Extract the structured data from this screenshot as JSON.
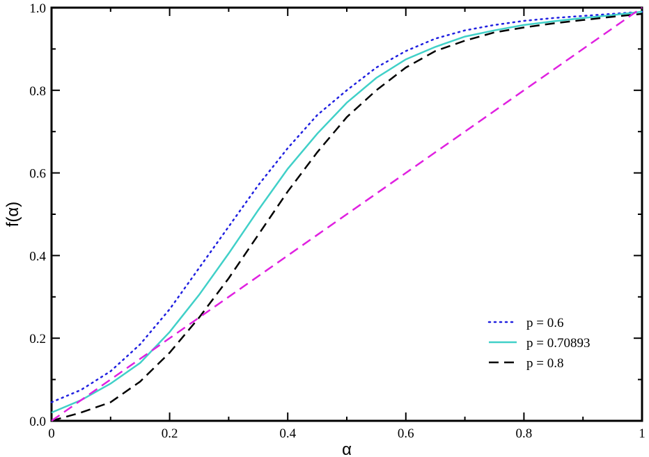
{
  "chart_data": {
    "type": "line",
    "title": "",
    "xlabel": "α",
    "ylabel": "f(α)",
    "xlim": [
      0,
      1
    ],
    "ylim": [
      0,
      1
    ],
    "x_ticks": [
      0,
      0.2,
      0.4,
      0.6,
      0.8,
      1
    ],
    "x_tick_labels": [
      "0",
      "0.2",
      "0.4",
      "0.6",
      "0.8",
      "1"
    ],
    "y_ticks": [
      0,
      0.2,
      0.4,
      0.6,
      0.8,
      1.0
    ],
    "y_tick_labels": [
      "0.0",
      "0.2",
      "0.4",
      "0.6",
      "0.8",
      "1.0"
    ],
    "grid": false,
    "legend_position": "bottom-right",
    "x": [
      0,
      0.05,
      0.1,
      0.15,
      0.2,
      0.25,
      0.3,
      0.35,
      0.4,
      0.45,
      0.5,
      0.55,
      0.6,
      0.65,
      0.7,
      0.75,
      0.8,
      0.85,
      0.9,
      0.95,
      1.0
    ],
    "series": [
      {
        "name": "p = 0.6",
        "color": "#2020e0",
        "style": "dotted",
        "values": [
          0.045,
          0.075,
          0.12,
          0.185,
          0.27,
          0.37,
          0.47,
          0.57,
          0.66,
          0.74,
          0.8,
          0.855,
          0.895,
          0.925,
          0.945,
          0.958,
          0.968,
          0.975,
          0.98,
          0.985,
          0.99
        ]
      },
      {
        "name": "p = 0.70893",
        "color": "#40d0c8",
        "style": "solid",
        "values": [
          0.02,
          0.05,
          0.09,
          0.14,
          0.215,
          0.305,
          0.405,
          0.51,
          0.61,
          0.695,
          0.77,
          0.83,
          0.875,
          0.905,
          0.93,
          0.945,
          0.958,
          0.967,
          0.975,
          0.982,
          0.99
        ]
      },
      {
        "name": "p = 0.8",
        "color": "#000000",
        "style": "dashed",
        "values": [
          0.0,
          0.02,
          0.045,
          0.095,
          0.165,
          0.25,
          0.345,
          0.45,
          0.555,
          0.65,
          0.735,
          0.8,
          0.855,
          0.895,
          0.92,
          0.94,
          0.952,
          0.962,
          0.97,
          0.978,
          0.985
        ]
      },
      {
        "name": "",
        "color": "#e020e0",
        "style": "dashed",
        "values": [
          0,
          0.05,
          0.1,
          0.15,
          0.2,
          0.25,
          0.3,
          0.35,
          0.4,
          0.45,
          0.5,
          0.55,
          0.6,
          0.65,
          0.7,
          0.75,
          0.8,
          0.85,
          0.9,
          0.95,
          1.0
        ]
      }
    ]
  }
}
